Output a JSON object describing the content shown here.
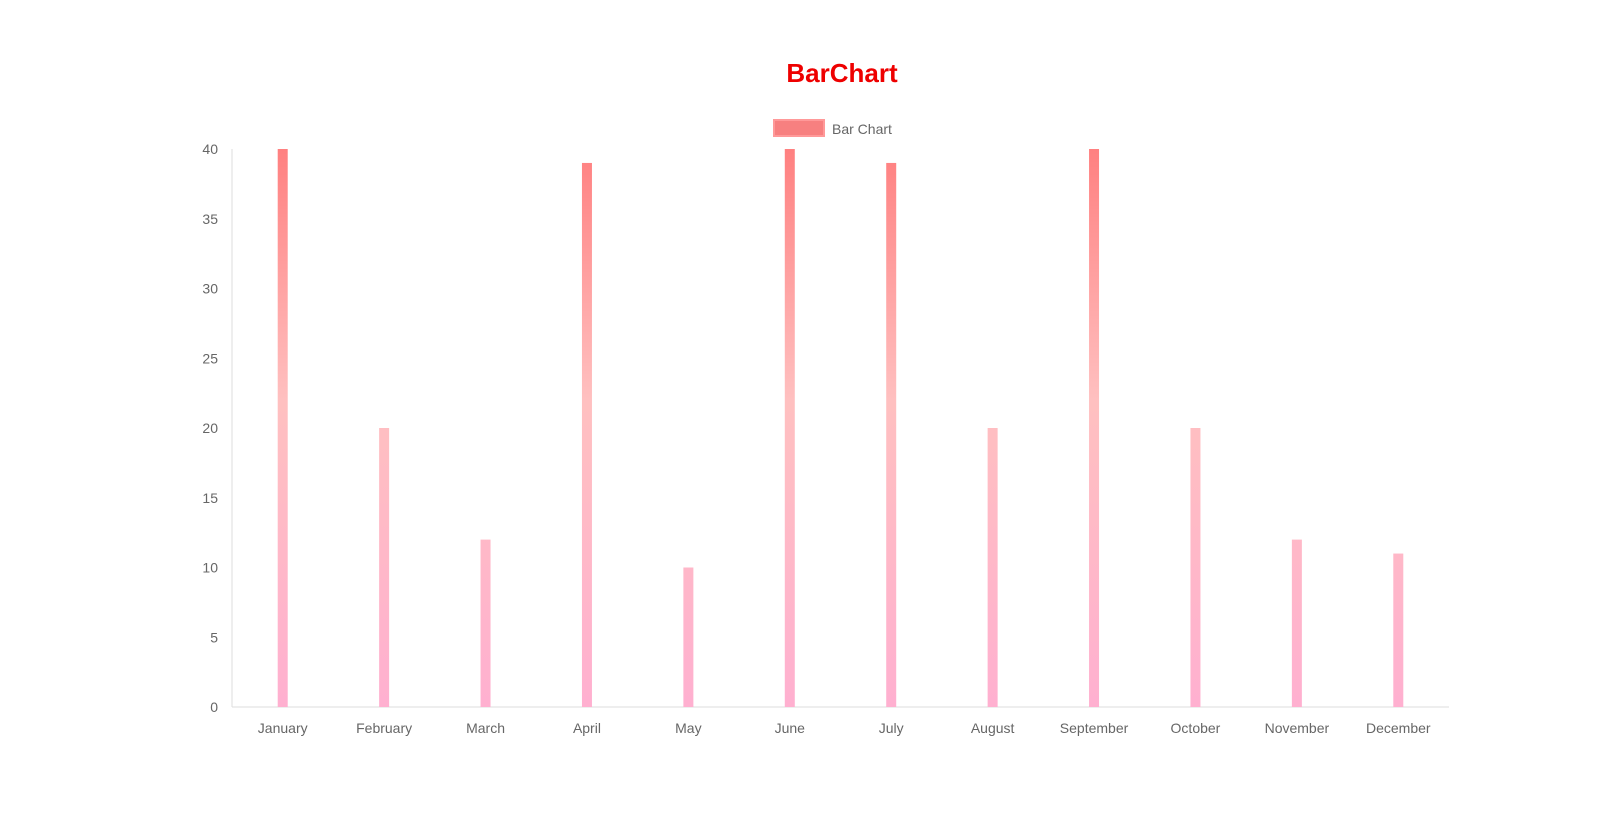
{
  "colors": {
    "title": "#ee0000",
    "bar_top": "#ff8080",
    "bar_middle": "#ffc0c0",
    "bar_bottom": "#ffb0d0",
    "legend_fill": "#f78080",
    "legend_stroke": "#ff9999",
    "axis": "#dddddd",
    "tick_text": "#666666"
  },
  "chart_data": {
    "type": "bar",
    "title": "BarChart",
    "legend": {
      "position": "top",
      "entries": [
        "Bar Chart"
      ]
    },
    "categories": [
      "January",
      "February",
      "March",
      "April",
      "May",
      "June",
      "July",
      "August",
      "September",
      "October",
      "November",
      "December"
    ],
    "series": [
      {
        "name": "Bar Chart",
        "values": [
          40,
          20,
          12,
          39,
          10,
          40,
          39,
          20,
          40,
          20,
          12,
          11
        ]
      }
    ],
    "ylim": [
      0,
      40
    ],
    "yticks": [
      "0",
      "5",
      "10",
      "15",
      "20",
      "25",
      "30",
      "35",
      "40"
    ],
    "grid": false
  }
}
